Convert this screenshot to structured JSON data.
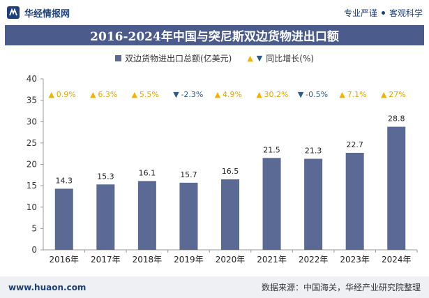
{
  "header": {
    "brand": "华经情报网",
    "tagline_left": "专业严谨",
    "tagline_right": "客观科学"
  },
  "title": "2016-2024年中国与突尼斯双边货物进出口额",
  "legend": {
    "series_label": "双边货物进出口总额(亿美元)",
    "growth_label": "同比增长(%)"
  },
  "footer": {
    "site": "www.huaon.com",
    "source": "数据来源：中国海关，华经产业研究院整理"
  },
  "colors": {
    "bar": "#5a6a95",
    "up": "#f2b400",
    "down": "#2f5a85",
    "title_bg": "#4a5b8c"
  },
  "chart_data": {
    "type": "bar",
    "categories": [
      "2016年",
      "2017年",
      "2018年",
      "2019年",
      "2020年",
      "2021年",
      "2022年",
      "2023年",
      "2024年"
    ],
    "series": [
      {
        "name": "双边货物进出口总额(亿美元)",
        "values": [
          14.3,
          15.3,
          16.1,
          15.7,
          16.5,
          21.5,
          21.3,
          22.7,
          28.8
        ]
      }
    ],
    "growth": {
      "name": "同比增长(%)",
      "values": [
        0.9,
        6.3,
        5.5,
        -2.3,
        4.9,
        30.2,
        -0.5,
        7.1,
        27
      ],
      "labels": [
        "0.9%",
        "6.3%",
        "5.5%",
        "-2.3%",
        "4.9%",
        "30.2%",
        "-0.5%",
        "7.1%",
        "27%"
      ]
    },
    "ylim": [
      0,
      40
    ],
    "yticks": [
      "0",
      "5",
      "10",
      "15",
      "20",
      "25",
      "30",
      "35",
      "40"
    ],
    "grid": false,
    "legend_position": "top-center"
  }
}
